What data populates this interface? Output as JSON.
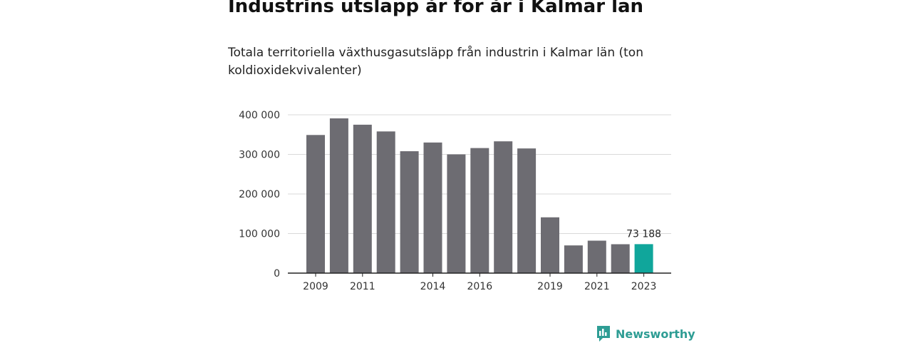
{
  "title": "Industrins utsläpp år för år i Kalmar län",
  "subtitle": "Totala territoriella växthusgasutsläpp från industrin i Kalmar län (ton koldioxidekvivalenter)",
  "logo": {
    "text": "Newsworthy",
    "icon": "newsworthy-logo-icon"
  },
  "colors": {
    "bar": "#6d6c72",
    "highlight": "#10a69b",
    "grid": "#d9d9d9",
    "axis": "#222222"
  },
  "chart_data": {
    "type": "bar",
    "categories": [
      "2009",
      "2010",
      "2011",
      "2012",
      "2013",
      "2014",
      "2015",
      "2016",
      "2017",
      "2018",
      "2019",
      "2020",
      "2021",
      "2022",
      "2023"
    ],
    "tick_labels": [
      "2009",
      "",
      "2011",
      "",
      "",
      "2014",
      "",
      "2016",
      "",
      "",
      "2019",
      "",
      "2021",
      "",
      "2023"
    ],
    "values": [
      349000,
      391000,
      375000,
      358000,
      308000,
      330000,
      300000,
      316000,
      333000,
      315000,
      141000,
      70000,
      82000,
      73000,
      73188
    ],
    "highlight_index": 14,
    "data_label": "73 188",
    "ylim": [
      0,
      400000
    ],
    "yticks": [
      0,
      100000,
      200000,
      300000,
      400000
    ],
    "ytick_labels": [
      "0",
      "100 000",
      "200 000",
      "300 000",
      "400 000"
    ],
    "grid": true
  }
}
